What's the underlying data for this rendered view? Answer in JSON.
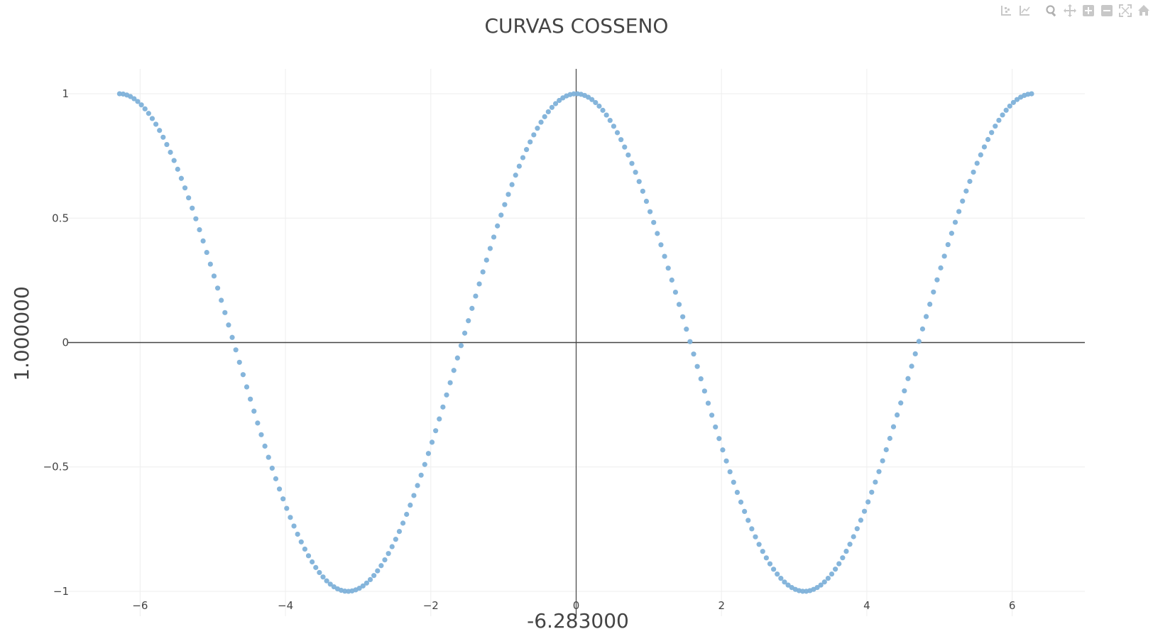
{
  "chart_data": {
    "type": "scatter",
    "title": "CURVAS COSSENO",
    "xlabel": "-6.283000",
    "ylabel": "1.000000",
    "xlim": [
      -7,
      7
    ],
    "ylim": [
      -1.1,
      1.1
    ],
    "x_ticks": [
      -6,
      -4,
      -2,
      0,
      2,
      4,
      6
    ],
    "x_tick_labels": [
      "−6",
      "−4",
      "−2",
      "0",
      "2",
      "4",
      "6"
    ],
    "y_ticks": [
      -1,
      -0.5,
      0,
      0.5,
      1
    ],
    "y_tick_labels": [
      "−1",
      "−0.5",
      "0",
      "0.5",
      "1"
    ],
    "grid": true,
    "zero_lines": true,
    "series": [
      {
        "function": "cos(x)",
        "x_start": -6.283,
        "x_end": 6.283,
        "x_step": 0.05,
        "color": "#7eb1d9"
      }
    ]
  },
  "modebar": {
    "group1": [
      "compare-data-icon",
      "spikelines-icon"
    ],
    "group2": [
      "zoom-icon",
      "pan-icon",
      "zoom-in-icon",
      "zoom-out-icon",
      "autoscale-icon",
      "reset-axes-icon"
    ]
  },
  "colors": {
    "grid": "#eeeeee",
    "zeroline": "#444444",
    "tick_text": "#444444",
    "title_text": "#444444",
    "marker": "#7eb1d9",
    "modebar_icon": "#c8c8c8"
  }
}
